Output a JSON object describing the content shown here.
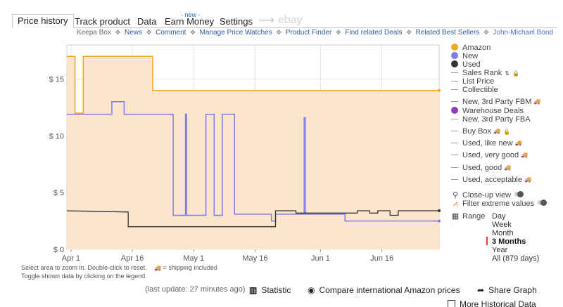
{
  "tabs": [
    "Price history",
    "Track product",
    "Data",
    "Earn Money",
    "Settings"
  ],
  "tab_new_badge": "- new -",
  "tab_ebay": "ebay",
  "links": {
    "keepa_box": "Keepa Box",
    "news": "News",
    "comment": "Comment",
    "manage_price_watches": "Manage Price Watches",
    "product_finder": "Product Finder",
    "find_related_deals": "Find related Deals",
    "related_best_sellers": "Related Best Sellers",
    "user": "John-Michael Bond"
  },
  "legend": {
    "amazon": "Amazon",
    "new": "New",
    "used": "Used",
    "sales_rank": "Sales Rank",
    "list_price": "List Price",
    "collectible": "Collectible",
    "new_fbm": "New, 3rd Party FBM",
    "warehouse": "Warehouse Deals",
    "new_fba": "New, 3rd Party FBA",
    "buy_box": "Buy Box",
    "used_like_new": "Used, like new",
    "used_very_good": "Used, very good",
    "used_good": "Used, good",
    "used_acceptable": "Used, acceptable"
  },
  "options": {
    "closeup": "Close-up view",
    "filter": "Filter extreme values",
    "range_label": "Range",
    "ranges": [
      "Day",
      "Week",
      "Month",
      "3 Months",
      "Year",
      "All (879 days)"
    ],
    "selected_range": "3 Months"
  },
  "hints": {
    "line1": "Select area to zoom in. Double-click to reset.",
    "shipping": "= shipping included",
    "line2": "Toggle shown data by clicking on the legend."
  },
  "bottom": {
    "last_update": "(last update: 27 minutes ago)",
    "statistic": "Statistic",
    "compare": "Compare international Amazon prices",
    "share": "Share Graph",
    "more": "More Historical Data"
  },
  "colors": {
    "amazon": "#f5a623",
    "amazon_fill": "#fde5cc",
    "new": "#7b7bea",
    "used": "#333333",
    "warehouse": "#8e3bbd",
    "selected_range_marker": "#e53935",
    "link": "#2d5a9e"
  },
  "chart_data": {
    "type": "line",
    "y_ticks": [
      "$ 0",
      "$ 5",
      "$ 10",
      "$ 15"
    ],
    "ylim": [
      0,
      18
    ],
    "x_ticks": [
      "Apr 1",
      "Apr 16",
      "May 1",
      "May 16",
      "Jun 1",
      "Jun 16"
    ],
    "x_tick_days": [
      0,
      15,
      30,
      45,
      61,
      76
    ],
    "xlim": [
      -1,
      90
    ],
    "series": [
      {
        "name": "Amazon",
        "color": "#f5a623",
        "points": [
          [
            -1,
            17
          ],
          [
            1,
            17
          ],
          [
            1,
            12
          ],
          [
            3,
            12
          ],
          [
            3,
            17
          ],
          [
            20,
            17
          ],
          [
            20,
            14
          ],
          [
            90,
            14
          ]
        ]
      },
      {
        "name": "New",
        "color": "#7b7bea",
        "points": [
          [
            -1,
            11.9
          ],
          [
            10,
            11.9
          ],
          [
            10,
            13
          ],
          [
            13,
            13
          ],
          [
            13,
            11.9
          ],
          [
            25,
            11.9
          ],
          [
            25,
            3
          ],
          [
            28,
            3
          ],
          [
            28,
            11.9
          ],
          [
            28.3,
            11.9
          ],
          [
            28.3,
            3
          ],
          [
            33,
            3
          ],
          [
            33,
            11.9
          ],
          [
            35,
            11.9
          ],
          [
            35,
            3
          ],
          [
            37,
            3
          ],
          [
            37,
            11.9
          ],
          [
            40,
            11.9
          ],
          [
            40,
            3.1
          ],
          [
            49,
            3.1
          ],
          [
            49,
            2.5
          ],
          [
            50,
            2.5
          ],
          [
            50,
            3.1
          ],
          [
            57,
            3.1
          ],
          [
            57,
            11.6
          ],
          [
            57.3,
            11.6
          ],
          [
            57.3,
            3.1
          ],
          [
            67,
            3.1
          ],
          [
            67,
            2.5
          ],
          [
            90,
            2.5
          ]
        ]
      },
      {
        "name": "Used",
        "color": "#333333",
        "points": [
          [
            -1,
            3.4
          ],
          [
            13,
            3.3
          ],
          [
            14,
            3.3
          ],
          [
            14,
            2
          ],
          [
            50,
            2
          ],
          [
            50,
            3.4
          ],
          [
            55,
            3.4
          ],
          [
            55,
            3.2
          ],
          [
            70,
            3.2
          ],
          [
            70,
            3.4
          ],
          [
            73,
            3.4
          ],
          [
            73,
            3.2
          ],
          [
            75,
            3.2
          ],
          [
            75,
            3.4
          ],
          [
            78,
            3.4
          ],
          [
            78,
            3
          ],
          [
            80,
            3
          ],
          [
            80,
            3.4
          ],
          [
            90,
            3.4
          ]
        ]
      }
    ]
  }
}
